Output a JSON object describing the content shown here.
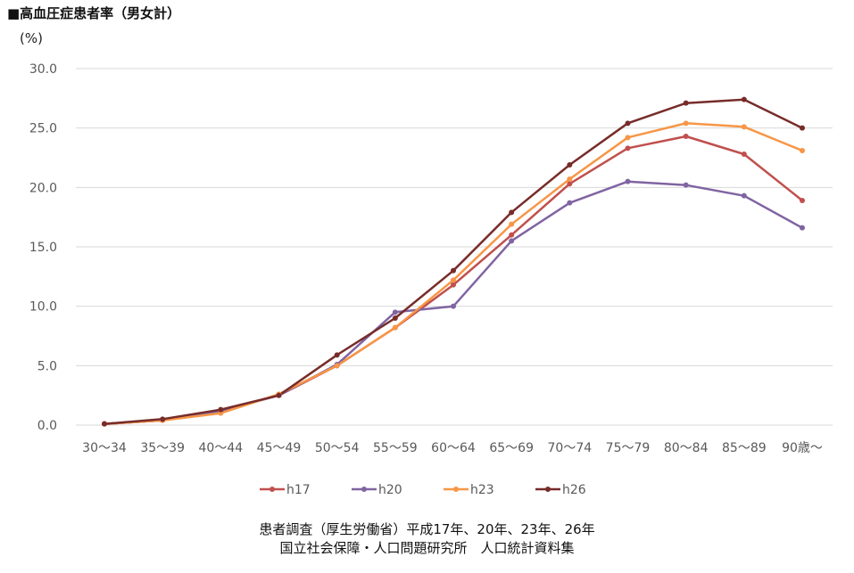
{
  "title": "■高血圧症患者率（男女計）",
  "y_unit": "(%)",
  "source": [
    "患者調査（厚生労働省）平成17年、20年、23年、26年",
    "国立社会保障・人口問題研究所　人口統計資料集"
  ],
  "chart_data": {
    "type": "line",
    "title": "■高血圧症患者率（男女計）",
    "ylabel": "(%)",
    "xlabel": "",
    "ylim": [
      0,
      30
    ],
    "yticks": [
      "0.0",
      "5.0",
      "10.0",
      "15.0",
      "20.0",
      "25.0",
      "30.0"
    ],
    "grid": true,
    "legend": "bottom",
    "categories": [
      "30～34",
      "35～39",
      "40～44",
      "45～49",
      "50～54",
      "55～59",
      "60～64",
      "65～69",
      "70～74",
      "75～79",
      "80～84",
      "85～89",
      "90歳～"
    ],
    "series": [
      {
        "name": "h17",
        "color": "#c0504d",
        "values": [
          0.1,
          0.4,
          1.2,
          2.5,
          5.0,
          8.2,
          11.8,
          16.0,
          20.3,
          23.3,
          24.3,
          22.8,
          18.9
        ]
      },
      {
        "name": "h20",
        "color": "#8064a2",
        "values": [
          0.1,
          0.4,
          1.2,
          2.5,
          5.1,
          9.5,
          10.0,
          15.5,
          18.7,
          20.5,
          20.2,
          19.3,
          16.6
        ]
      },
      {
        "name": "h23",
        "color": "#f79646",
        "values": [
          0.1,
          0.4,
          1.0,
          2.6,
          5.0,
          8.2,
          12.2,
          16.9,
          20.7,
          24.2,
          25.4,
          25.1,
          23.1
        ]
      },
      {
        "name": "h26",
        "color": "#772c2a",
        "values": [
          0.1,
          0.5,
          1.3,
          2.5,
          5.9,
          9.0,
          13.0,
          17.9,
          21.9,
          25.4,
          27.1,
          27.4,
          25.0
        ]
      }
    ]
  }
}
